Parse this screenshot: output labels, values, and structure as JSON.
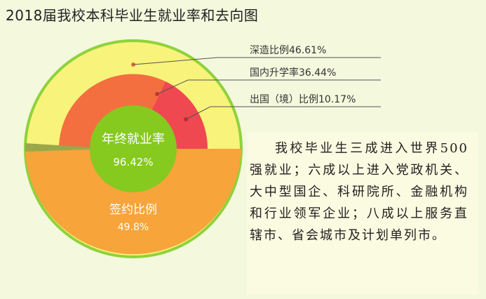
{
  "chart_data": {
    "type": "pie",
    "title": "2018届我校本科毕业生就业率和去向图",
    "center": {
      "label": "年终就业率",
      "value": "96.42%"
    },
    "inner_label": {
      "label": "签约比例",
      "value": "49.8%"
    },
    "outer_callouts": [
      {
        "name": "深造比例",
        "value": 46.61,
        "text": "深造比例46.61%"
      },
      {
        "name": "国内升学率",
        "value": 36.44,
        "text": "国内升学率36.44%"
      },
      {
        "name": "出国（境）比例",
        "value": 10.17,
        "text": "出国（境）比例10.17%"
      }
    ],
    "colors": {
      "outer_ring": "#f8f37a",
      "outer_ring_border": "#8ed23c",
      "domestic": "#f36f40",
      "abroad": "#ef4850",
      "signed": "#f7a43a",
      "center": "#86c91f",
      "sliver": "#9aa84a"
    }
  },
  "description": "我校毕业生三成进入世界500强就业；六成以上进入党政机关、大中型国企、科研院所、金融机构和行业领军企业；八成以上服务直辖市、省会城市及计划单列市。"
}
